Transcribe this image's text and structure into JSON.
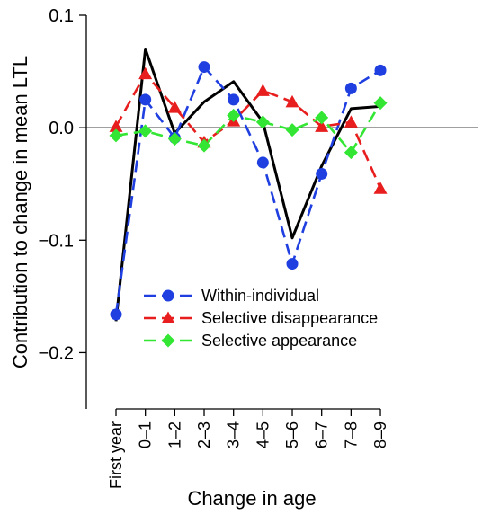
{
  "chart_data": {
    "type": "line",
    "xlabel": "Change in age",
    "ylabel": "Contribution to change in mean LTL",
    "categories": [
      "First year",
      "0–1",
      "1–2",
      "2–3",
      "3–4",
      "4–5",
      "5–6",
      "6–7",
      "7–8",
      "8–9"
    ],
    "ylim": [
      -0.25,
      0.1
    ],
    "yticks": [
      0.1,
      0.0,
      -0.1,
      -0.2
    ],
    "ytick_labels": [
      "0.1",
      "0.0",
      "−0.1",
      "−0.2"
    ],
    "reference_line_y": 0,
    "grid": false,
    "legend": {
      "position": "bottom-center"
    },
    "series": [
      {
        "name": "",
        "color": "#000000",
        "style": "solid",
        "marker": "none",
        "values": [
          -0.172,
          0.07,
          -0.005,
          0.023,
          0.041,
          0.005,
          -0.098,
          -0.034,
          0.017,
          0.019
        ]
      },
      {
        "name": "Within-individual",
        "color": "#1f3fe0",
        "style": "dashed",
        "marker": "circle",
        "values": [
          -0.166,
          0.025,
          -0.009,
          0.054,
          0.025,
          -0.031,
          -0.121,
          -0.041,
          0.035,
          0.051
        ]
      },
      {
        "name": "Selective disappearance",
        "color": "#e81e1e",
        "style": "dashed",
        "marker": "triangle",
        "values": [
          0.001,
          0.048,
          0.018,
          -0.013,
          0.006,
          0.033,
          0.023,
          0.001,
          0.005,
          -0.054
        ]
      },
      {
        "name": "Selective appearance",
        "color": "#33e633",
        "style": "dashed",
        "marker": "diamond",
        "values": [
          -0.007,
          -0.003,
          -0.01,
          -0.016,
          0.011,
          0.005,
          -0.002,
          0.009,
          -0.022,
          0.022
        ]
      }
    ]
  }
}
